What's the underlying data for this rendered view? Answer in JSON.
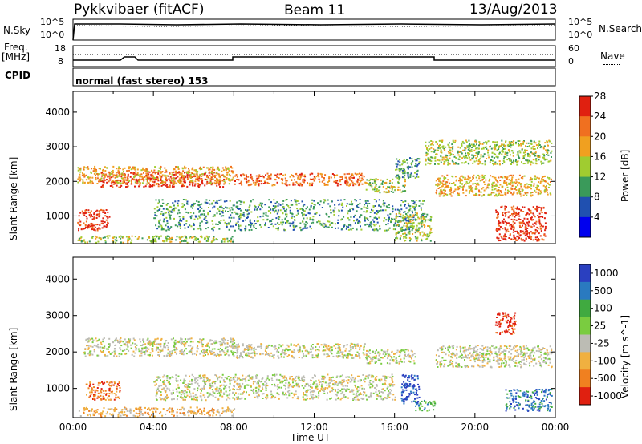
{
  "header": {
    "station": "Pykkvibaer (fitACF)",
    "beam": "Beam 11",
    "date": "13/Aug/2013"
  },
  "strip": {
    "nsky_label": "N.Sky",
    "nsky_ticks": [
      "10^5",
      "10^0"
    ],
    "nsearch_label": "N.Search",
    "nsearch_ticks": [
      "10^5",
      "10^0"
    ],
    "freq_label_top": "Freq.",
    "freq_label_bottom": "[MHz]",
    "freq_ticks": [
      "18",
      "8"
    ],
    "nave_label": "Nave",
    "nave_ticks": [
      "60",
      "0"
    ],
    "cpid_label": "CPID",
    "cpid_value": "normal (fast stereo) 153"
  },
  "chart_data": [
    {
      "type": "heatmap",
      "title": "",
      "xlabel": "",
      "ylabel": "Slant Range [km]",
      "xlim": [
        0,
        24
      ],
      "ylim": [
        200,
        4600
      ],
      "yticks": [
        "1000",
        "2000",
        "3000",
        "4000"
      ],
      "colorbar_label": "Power [dB]",
      "colorbar_ticks": [
        "4",
        "8",
        "12",
        "16",
        "20",
        "24",
        "28"
      ],
      "colors": [
        "#0000ee",
        "#2050b0",
        "#3a9a5a",
        "#a0cc30",
        "#f0a020",
        "#f07020",
        "#e02010"
      ],
      "bands": [
        {
          "x": [
            1.3,
            7.5
          ],
          "y": [
            1850,
            2300
          ],
          "level": 6
        },
        {
          "x": [
            0.2,
            8.0
          ],
          "y": [
            1950,
            2450
          ],
          "level": 4
        },
        {
          "x": [
            8.0,
            14.5
          ],
          "y": [
            1900,
            2250
          ],
          "level": 5
        },
        {
          "x": [
            14.5,
            16.5
          ],
          "y": [
            1700,
            2100
          ],
          "level": 3
        },
        {
          "x": [
            16.0,
            17.2
          ],
          "y": [
            2100,
            2700
          ],
          "level": 2
        },
        {
          "x": [
            18.0,
            23.8
          ],
          "y": [
            1600,
            2200
          ],
          "level": 4
        },
        {
          "x": [
            0.2,
            1.8
          ],
          "y": [
            600,
            1200
          ],
          "level": 6
        },
        {
          "x": [
            4.0,
            17.5
          ],
          "y": [
            600,
            1500
          ],
          "level": 2
        },
        {
          "x": [
            16.0,
            17.8
          ],
          "y": [
            300,
            1100
          ],
          "level": 3
        },
        {
          "x": [
            21.0,
            23.5
          ],
          "y": [
            300,
            1300
          ],
          "level": 6
        },
        {
          "x": [
            0.2,
            8.0
          ],
          "y": [
            250,
            450
          ],
          "level": 3
        },
        {
          "x": [
            17.5,
            23.8
          ],
          "y": [
            2500,
            3200
          ],
          "level": 3
        }
      ]
    },
    {
      "type": "heatmap",
      "title": "",
      "xlabel": "Time UT",
      "ylabel": "Slant Range [km]",
      "xlim": [
        0,
        24
      ],
      "ylim": [
        200,
        4600
      ],
      "xticks": [
        "00:00",
        "04:00",
        "08:00",
        "12:00",
        "16:00",
        "20:00",
        "00:00"
      ],
      "yticks": [
        "1000",
        "2000",
        "3000",
        "4000"
      ],
      "colorbar_label": "Velocity [m s^-1]",
      "colorbar_ticks": [
        "1000",
        "500",
        "100",
        "25",
        "-25",
        "-100",
        "-500",
        "-1000"
      ],
      "colors": [
        "#2a40c0",
        "#2a7ac0",
        "#40aa40",
        "#7acc40",
        "#bcbcb4",
        "#f0b040",
        "#f08020",
        "#e02010"
      ],
      "bands": [
        {
          "x": [
            0.5,
            8.0
          ],
          "y": [
            1900,
            2400
          ],
          "level": 4
        },
        {
          "x": [
            8.0,
            14.5
          ],
          "y": [
            1850,
            2250
          ],
          "level": 4
        },
        {
          "x": [
            14.5,
            17.0
          ],
          "y": [
            1700,
            2100
          ],
          "level": 4
        },
        {
          "x": [
            18.0,
            23.8
          ],
          "y": [
            1600,
            2200
          ],
          "level": 4
        },
        {
          "x": [
            4.0,
            16.0
          ],
          "y": [
            700,
            1400
          ],
          "level": 4
        },
        {
          "x": [
            0.6,
            2.3
          ],
          "y": [
            700,
            1200
          ],
          "level": 6
        },
        {
          "x": [
            16.3,
            17.2
          ],
          "y": [
            600,
            1400
          ],
          "level": 0
        },
        {
          "x": [
            17.0,
            18.0
          ],
          "y": [
            400,
            700
          ],
          "level": 2
        },
        {
          "x": [
            21.5,
            23.8
          ],
          "y": [
            400,
            1000
          ],
          "level": 1
        },
        {
          "x": [
            21.0,
            22.0
          ],
          "y": [
            2500,
            3100
          ],
          "level": 7
        },
        {
          "x": [
            0.2,
            8.0
          ],
          "y": [
            250,
            500
          ],
          "level": 5
        }
      ]
    }
  ]
}
